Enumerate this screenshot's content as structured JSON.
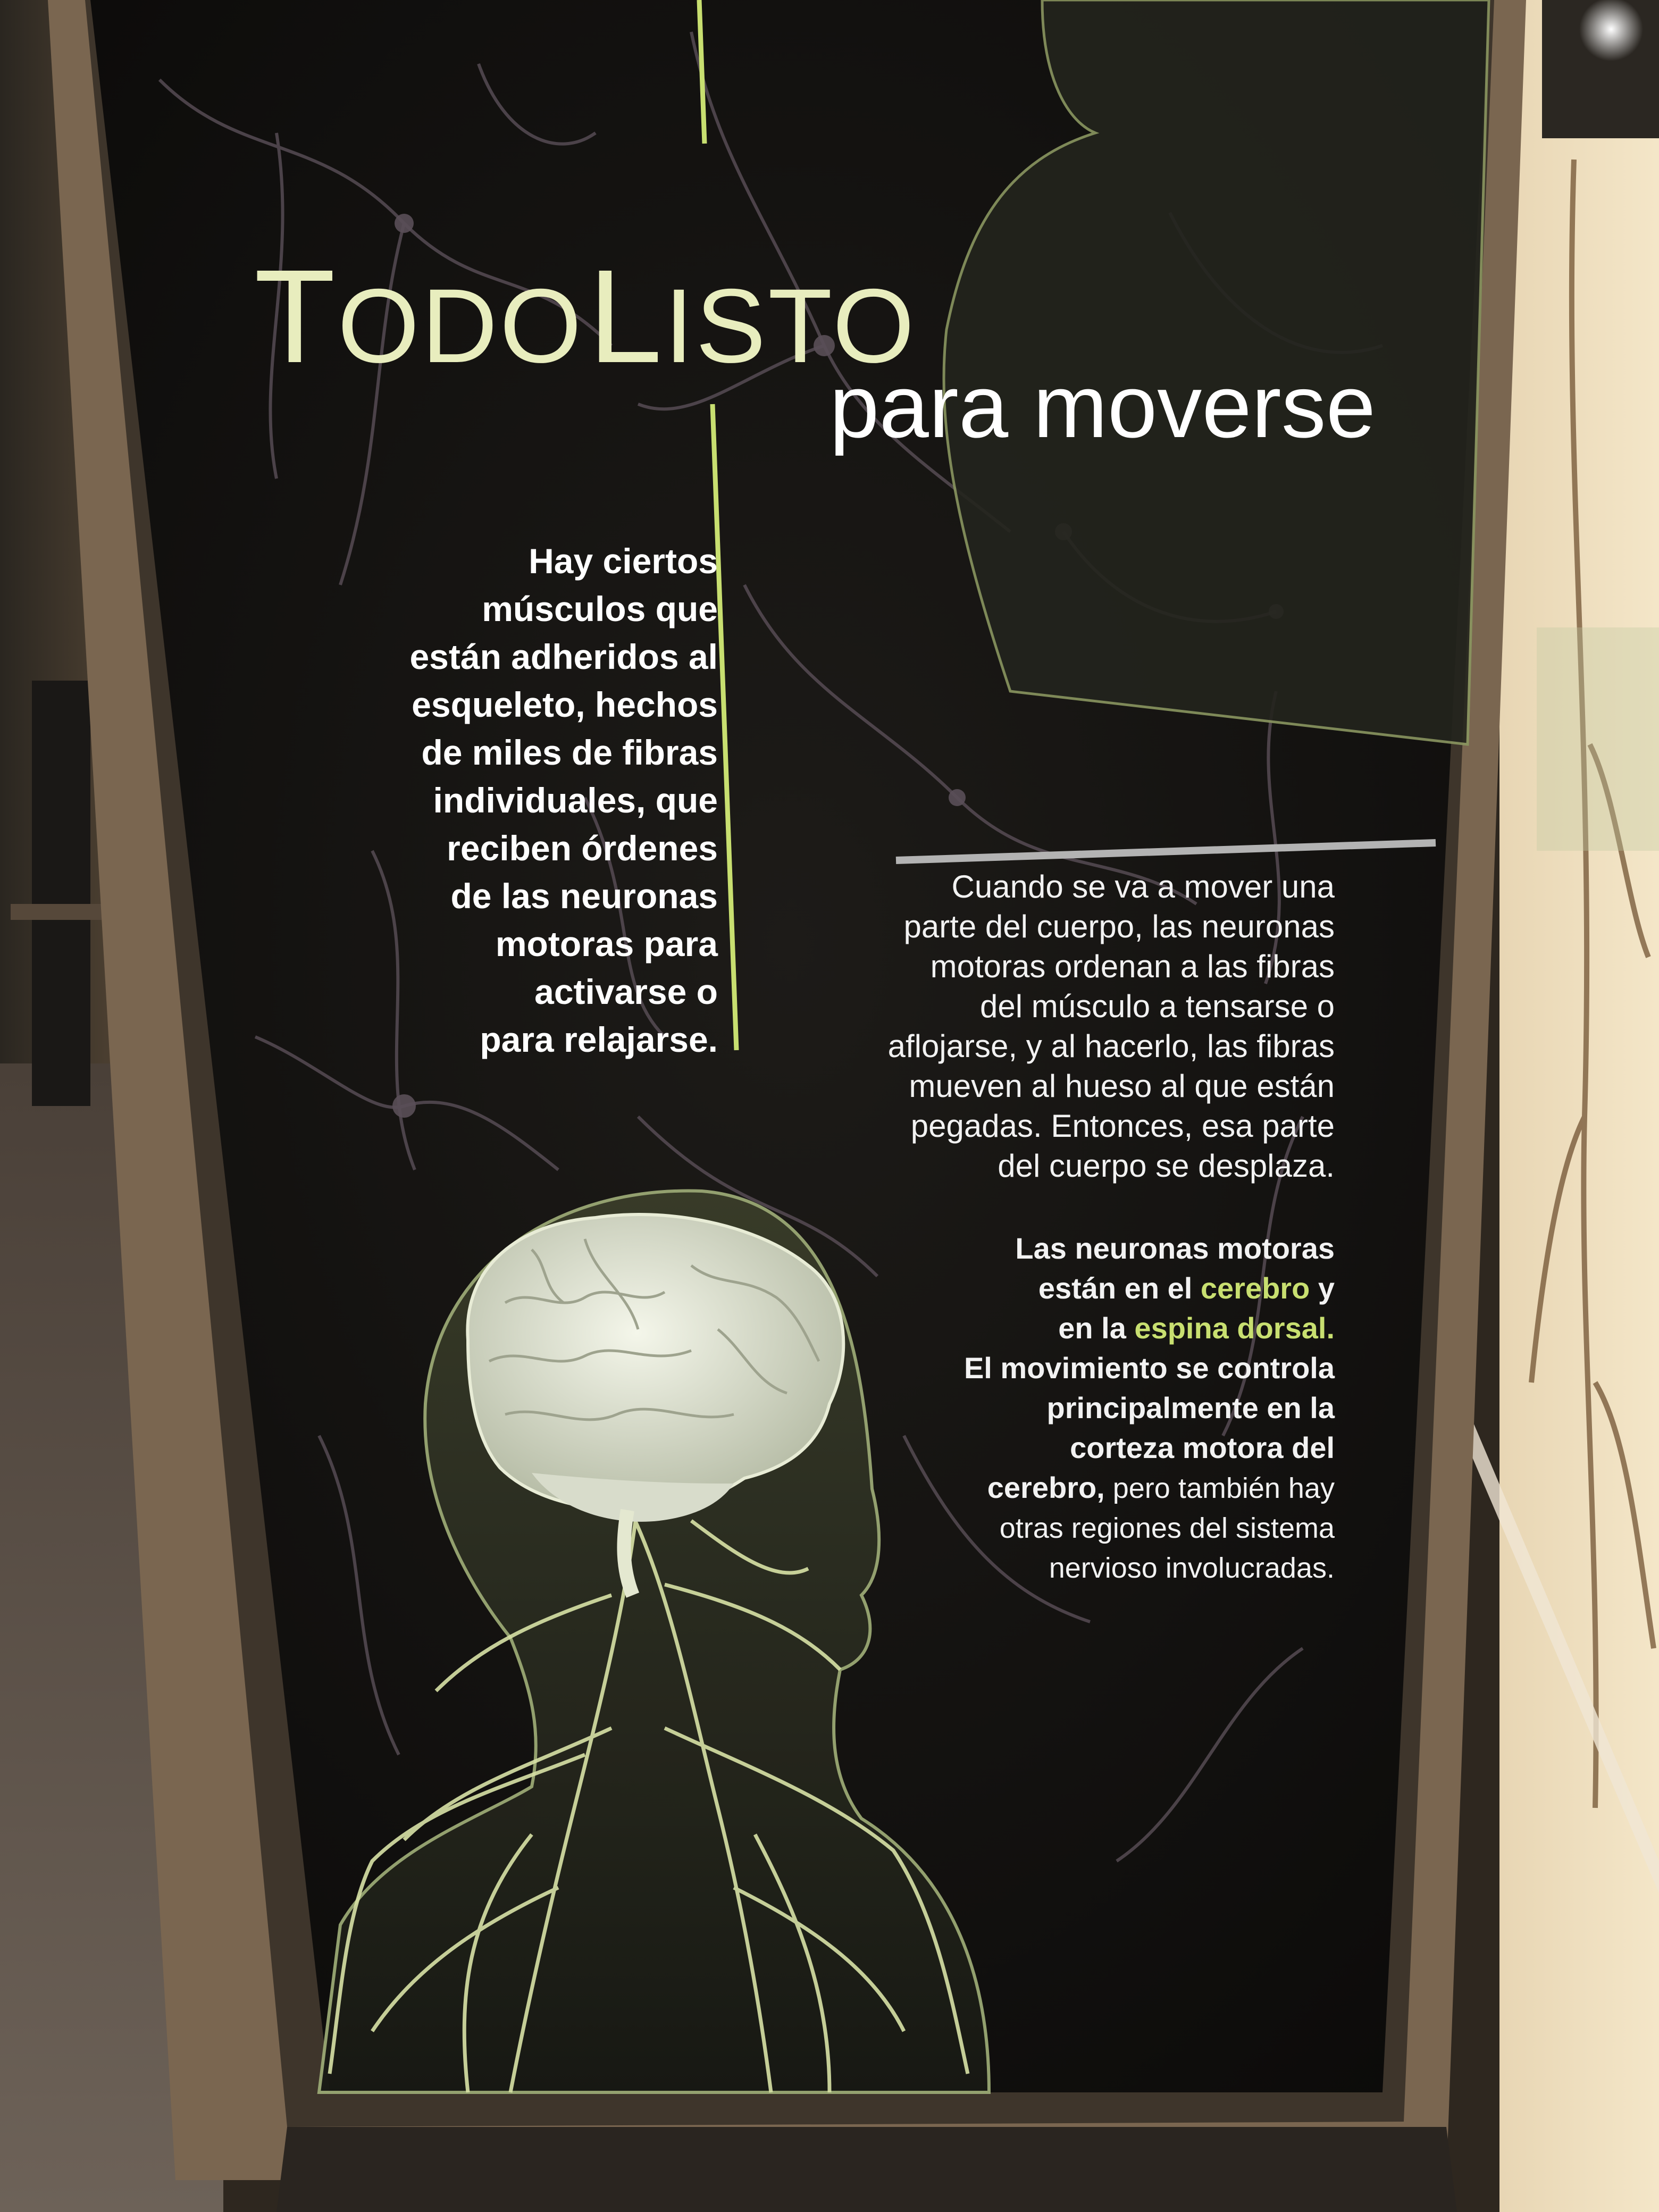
{
  "panel": {
    "title_word1": "Todo",
    "title_word2": "Listo",
    "subtitle": "para moverse",
    "left_text": [
      "Hay ciertos",
      "músculos que",
      "están adheridos al",
      "esqueleto, hechos",
      "de miles de fibras",
      "individuales, que",
      "reciben órdenes",
      "de las neuronas",
      "motoras para",
      "activarse o",
      "para relajarse."
    ],
    "right_text": [
      "Cuando se va a mover una",
      "parte del cuerpo, las neuronas",
      "motoras ordenan a las fibras",
      "del músculo a tensarse o",
      "aflojarse, y al hacerlo, las fibras",
      "mueven al hueso al que están",
      "pegadas. Entonces, esa parte",
      "del cuerpo se desplaza."
    ],
    "bold_block": {
      "line1": "Las neuronas motoras",
      "line2_pre": "están en el ",
      "line2_hl": "cerebro",
      "line2_post": " y",
      "line3_pre": "en la ",
      "line3_hl": "espina dorsal.",
      "line4": "El movimiento se controla",
      "line5": "principalmente en la",
      "line6": "corteza motora del",
      "line7_bold": "cerebro,",
      "line7_normal": " pero también hay",
      "line8": "otras regiones del sistema",
      "line9": "nervioso involucradas."
    }
  },
  "colors": {
    "panel_bg": "#141210",
    "accent": "#c8df70",
    "frame": "#6e5a44"
  }
}
